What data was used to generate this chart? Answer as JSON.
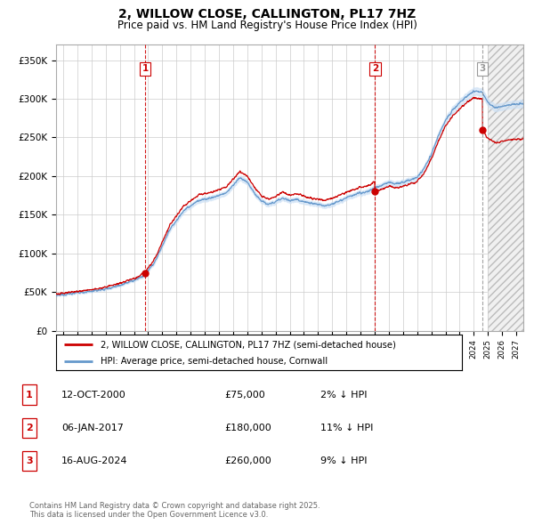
{
  "title": "2, WILLOW CLOSE, CALLINGTON, PL17 7HZ",
  "subtitle": "Price paid vs. HM Land Registry's House Price Index (HPI)",
  "ylabel_ticks": [
    "£0",
    "£50K",
    "£100K",
    "£150K",
    "£200K",
    "£250K",
    "£300K",
    "£350K"
  ],
  "ytick_vals": [
    0,
    50000,
    100000,
    150000,
    200000,
    250000,
    300000,
    350000
  ],
  "ylim": [
    0,
    370000
  ],
  "xlim_start": 1994.5,
  "xlim_end": 2027.5,
  "background_color": "#ffffff",
  "grid_color": "#cccccc",
  "sale_dates": [
    2000.79,
    2017.02,
    2024.62
  ],
  "sale_prices": [
    75000,
    180000,
    260000
  ],
  "sale_labels": [
    "1",
    "2",
    "3"
  ],
  "dashed_colors": [
    "#cc0000",
    "#cc0000",
    "#999999"
  ],
  "legend_line1": "2, WILLOW CLOSE, CALLINGTON, PL17 7HZ (semi-detached house)",
  "legend_line2": "HPI: Average price, semi-detached house, Cornwall",
  "table_rows": [
    [
      "1",
      "12-OCT-2000",
      "£75,000",
      "2% ↓ HPI"
    ],
    [
      "2",
      "06-JAN-2017",
      "£180,000",
      "11% ↓ HPI"
    ],
    [
      "3",
      "16-AUG-2024",
      "£260,000",
      "9% ↓ HPI"
    ]
  ],
  "footnote": "Contains HM Land Registry data © Crown copyright and database right 2025.\nThis data is licensed under the Open Government Licence v3.0.",
  "red_color": "#cc0000",
  "blue_color": "#6699cc",
  "hpi_fill_color": "#cce0f5",
  "future_hatch_start": 2025.0
}
